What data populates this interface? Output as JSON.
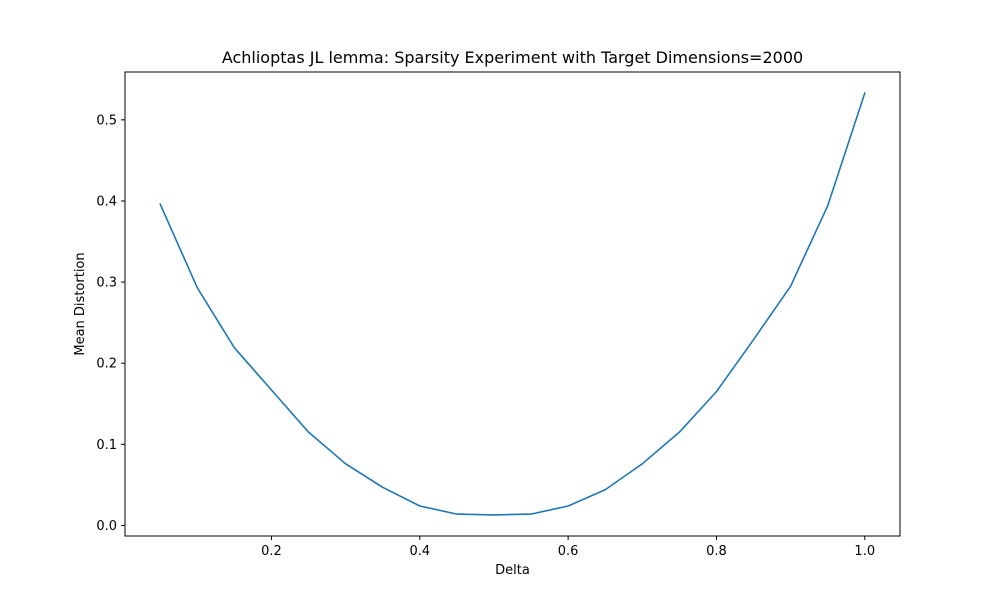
{
  "chart_data": {
    "type": "line",
    "title": "Achlioptas JL lemma: Sparsity Experiment with Target Dimensions=2000",
    "xlabel": "Delta",
    "ylabel": "Mean Distortion",
    "xlim": [
      0.0025,
      1.0475
    ],
    "ylim": [
      -0.013,
      0.559
    ],
    "xticks": [
      0.2,
      0.4,
      0.6,
      0.8,
      1.0
    ],
    "xtick_labels": [
      "0.2",
      "0.4",
      "0.6",
      "0.8",
      "1.0"
    ],
    "yticks": [
      0.0,
      0.1,
      0.2,
      0.3,
      0.4,
      0.5
    ],
    "ytick_labels": [
      "0.0",
      "0.1",
      "0.2",
      "0.3",
      "0.4",
      "0.5"
    ],
    "grid": false,
    "series": [
      {
        "color": "#1f77b4",
        "x": [
          0.05,
          0.1,
          0.15,
          0.2,
          0.25,
          0.3,
          0.35,
          0.4,
          0.45,
          0.5,
          0.55,
          0.6,
          0.65,
          0.7,
          0.75,
          0.8,
          0.85,
          0.9,
          0.95,
          1.0
        ],
        "y": [
          0.396,
          0.293,
          0.219,
          0.167,
          0.115,
          0.076,
          0.047,
          0.024,
          0.014,
          0.013,
          0.014,
          0.024,
          0.044,
          0.076,
          0.115,
          0.165,
          0.229,
          0.295,
          0.394,
          0.533
        ]
      }
    ]
  }
}
